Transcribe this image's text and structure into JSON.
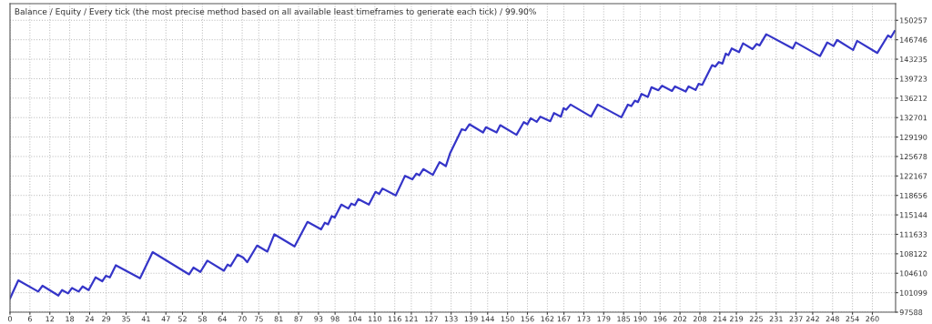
{
  "chart_data": {
    "type": "line",
    "title": "Balance / Equity / Every tick (the most precise method based on all available least timeframes to generate each tick) / 99.90%",
    "x": [
      0,
      2.5,
      8.5,
      9.8,
      14.6,
      15.7,
      17.5,
      18.7,
      20.7,
      21.9,
      23.7,
      25.8,
      27.8,
      28.9,
      30.1,
      31.9,
      39.2,
      43.0,
      54.0,
      55.3,
      57.4,
      59.5,
      64.5,
      65.6,
      66.5,
      68.6,
      70.3,
      71.5,
      74.5,
      77.6,
      79.7,
      85.8,
      89.7,
      93.8,
      94.9,
      95.9,
      97.0,
      97.9,
      99.9,
      102.0,
      102.9,
      104.0,
      105.0,
      108.2,
      110.2,
      111.3,
      112.3,
      116.3,
      119.1,
      121.3,
      122.5,
      123.4,
      124.6,
      127.5,
      129.5,
      131.4,
      132.7,
      136.2,
      137.3,
      138.5,
      142.6,
      143.5,
      146.7,
      147.8,
      152.7,
      154.9,
      156.0,
      157.0,
      158.8,
      159.9,
      162.9,
      164.0,
      166.1,
      166.9,
      167.7,
      169.0,
      175.2,
      177.2,
      184.3,
      186.3,
      187.3,
      188.4,
      189.3,
      190.4,
      192.3,
      193.4,
      195.5,
      196.6,
      199.6,
      200.5,
      203.7,
      204.6,
      206.7,
      207.6,
      208.7,
      211.7,
      212.6,
      213.7,
      214.8,
      215.8,
      216.6,
      217.6,
      219.8,
      221.0,
      223.9,
      225.1,
      226.0,
      228.0,
      236.0,
      236.9,
      244.2,
      246.4,
      248.3,
      249.4,
      254.2,
      255.4,
      261.5,
      264.7,
      265.6,
      266.7
    ],
    "series": [
      {
        "color": "#3535c8",
        "values": [
          100050,
          103330,
          101300,
          102350,
          100590,
          101580,
          100970,
          101950,
          101300,
          102230,
          101580,
          103870,
          103170,
          104150,
          103870,
          106060,
          103710,
          108420,
          104410,
          105630,
          104860,
          106880,
          105070,
          106170,
          105890,
          107980,
          107430,
          106610,
          109610,
          108520,
          111640,
          109450,
          113880,
          112520,
          113720,
          113440,
          114920,
          114650,
          117000,
          116290,
          117170,
          116890,
          117990,
          117000,
          119300,
          118920,
          119900,
          118640,
          122200,
          121550,
          122580,
          122300,
          123400,
          122370,
          124660,
          123940,
          126300,
          130600,
          130400,
          131490,
          130010,
          130950,
          130010,
          131330,
          129590,
          131880,
          131490,
          132590,
          131930,
          132870,
          132050,
          133520,
          132870,
          134400,
          134120,
          135050,
          132870,
          135050,
          132750,
          135050,
          134770,
          135760,
          135490,
          136970,
          136410,
          138170,
          137630,
          138450,
          137510,
          138330,
          137400,
          138330,
          137680,
          138780,
          138610,
          142160,
          141890,
          142710,
          142440,
          144240,
          143960,
          145170,
          144520,
          146100,
          145060,
          145990,
          145720,
          147740,
          145170,
          146260,
          143800,
          146260,
          145600,
          146700,
          144900,
          146540,
          144360,
          147520,
          147190,
          148300
        ]
      }
    ],
    "xlim": [
      0,
      267
    ],
    "xticks": [
      0,
      6,
      12,
      18,
      24,
      29,
      35,
      41,
      47,
      52,
      58,
      64,
      70,
      75,
      81,
      87,
      93,
      98,
      104,
      110,
      116,
      121,
      127,
      133,
      139,
      144,
      150,
      156,
      162,
      167,
      173,
      179,
      185,
      190,
      196,
      202,
      208,
      214,
      219,
      225,
      231,
      237,
      242,
      248,
      254,
      260
    ],
    "ylim": [
      97588,
      153260
    ],
    "yticks": [
      97588,
      101099,
      104610,
      108122,
      111633,
      115144,
      118656,
      122167,
      125678,
      129190,
      132701,
      136212,
      139723,
      143235,
      146746,
      150257
    ],
    "grid": true,
    "line_style": "solid",
    "marker": "none"
  }
}
